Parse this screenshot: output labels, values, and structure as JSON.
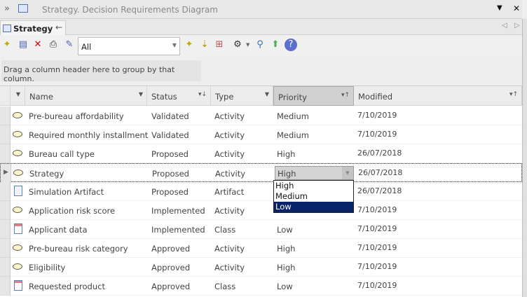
{
  "window": {
    "title": "Strategy.  Decision Requirements Diagram"
  },
  "tab": {
    "label": "Strategy"
  },
  "toolbar": {
    "filter_value": "All"
  },
  "group_hint": "Drag a column header here to group by that column.",
  "columns": [
    "Name",
    "Status",
    "Type",
    "Priority",
    "Modified"
  ],
  "rows": [
    {
      "icon": "activity",
      "name": "Pre-bureau affordability",
      "status": "Validated",
      "type": "Activity",
      "priority": "Medium",
      "modified": "7/10/2019"
    },
    {
      "icon": "activity",
      "name": "Required monthly installment",
      "status": "Validated",
      "type": "Activity",
      "priority": "Medium",
      "modified": "7/10/2019"
    },
    {
      "icon": "activity",
      "name": "Bureau call type",
      "status": "Proposed",
      "type": "Activity",
      "priority": "High",
      "modified": "26/07/2018"
    },
    {
      "icon": "activity",
      "name": "Strategy",
      "status": "Proposed",
      "type": "Activity",
      "priority": "High",
      "modified": "26/07/2018"
    },
    {
      "icon": "artifact",
      "name": "Simulation Artifact",
      "status": "Proposed",
      "type": "Artifact",
      "priority": "",
      "modified": "26/07/2018"
    },
    {
      "icon": "activity",
      "name": "Application risk score",
      "status": "Implemented",
      "type": "Activity",
      "priority": "",
      "modified": "7/10/2019"
    },
    {
      "icon": "class",
      "name": "Applicant data",
      "status": "Implemented",
      "type": "Class",
      "priority": "Low",
      "modified": "7/10/2019"
    },
    {
      "icon": "activity",
      "name": "Pre-bureau risk category",
      "status": "Approved",
      "type": "Activity",
      "priority": "High",
      "modified": "7/10/2019"
    },
    {
      "icon": "activity",
      "name": "Eligibility",
      "status": "Approved",
      "type": "Activity",
      "priority": "High",
      "modified": "7/10/2019"
    },
    {
      "icon": "class",
      "name": "Requested product",
      "status": "Approved",
      "type": "Class",
      "priority": "Low",
      "modified": "7/10/2019"
    }
  ],
  "priority_dropdown": {
    "selected": "Low",
    "options": [
      "High",
      "Medium",
      "Low"
    ]
  }
}
